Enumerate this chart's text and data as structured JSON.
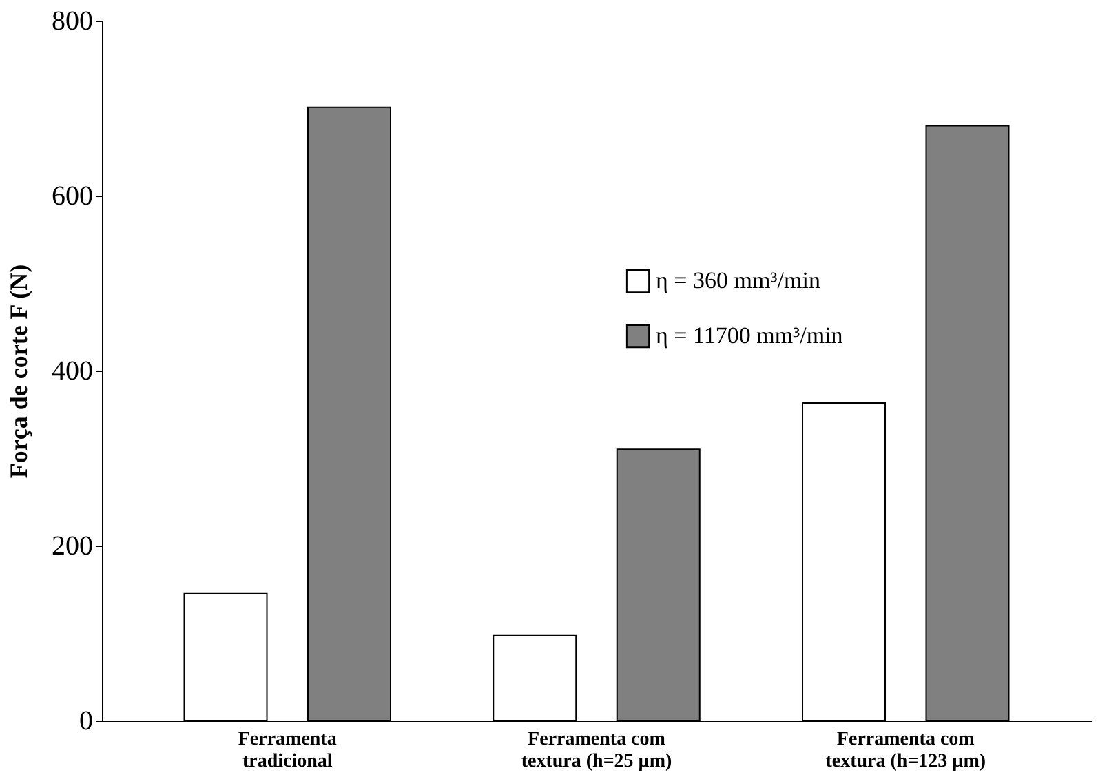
{
  "chart_data": {
    "type": "bar",
    "ylabel": "Força de corte F (N)",
    "categories": [
      "Ferramenta tradicional",
      "Ferramenta com textura (h=25 µm)",
      "Ferramenta com textura (h=123 µm)"
    ],
    "series": [
      {
        "name": "η = 360 mm³/min",
        "color": "#ffffff",
        "values": [
          145,
          97,
          363
        ]
      },
      {
        "name": "η = 11700 mm³/min",
        "color": "#808080",
        "values": [
          701,
          310,
          680
        ]
      }
    ],
    "ylim": [
      0,
      800
    ],
    "yticks": [
      0,
      200,
      400,
      600,
      800
    ],
    "grid": false,
    "legend": "top right"
  }
}
